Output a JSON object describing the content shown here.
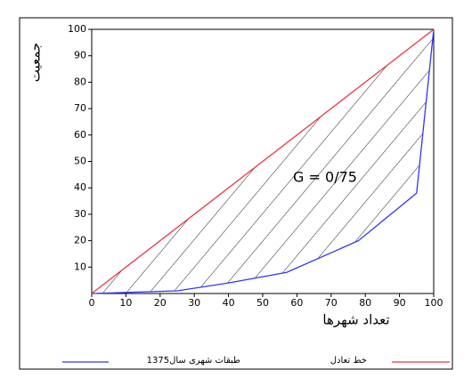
{
  "chart_data": {
    "type": "line",
    "x_label": "تعداد شهرها",
    "y_label": "جمعیت",
    "annotation": "G = 0/75",
    "series": [
      {
        "name": "طبقات شهری سال1375",
        "color": "#3333ff",
        "x": [
          0,
          25,
          40,
          57,
          78,
          95,
          100
        ],
        "values": [
          0,
          1,
          4,
          8,
          20,
          38,
          100
        ]
      },
      {
        "name": "خط تعادل",
        "color": "#ee3344",
        "x": [
          0,
          100
        ],
        "values": [
          0,
          100
        ]
      }
    ],
    "xlim": [
      0,
      100
    ],
    "ylim": [
      0,
      100
    ],
    "xticks": [
      0,
      10,
      20,
      30,
      40,
      50,
      60,
      70,
      80,
      90,
      100
    ],
    "yticks": [
      10,
      20,
      30,
      40,
      50,
      60,
      70,
      80,
      90,
      100
    ]
  }
}
